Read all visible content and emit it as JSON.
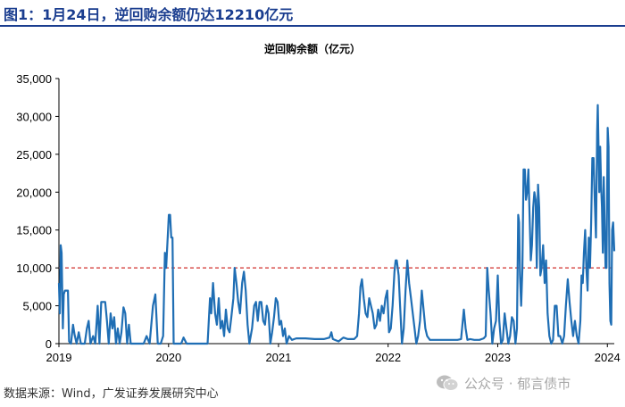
{
  "header": {
    "figure_title": "图1：1月24日，逆回购余额仍达12210亿元"
  },
  "footer": {
    "source": "数据来源：Wind，广发证券发展研究中心",
    "watermark": "公众号 · 郁言债市"
  },
  "colors": {
    "line": "#1f6eb4",
    "reference_line": "#d0312d",
    "title_blue": "#1a3d8f"
  },
  "chart_data": {
    "type": "line",
    "title": "逆回购余额（亿元）",
    "xlabel": "",
    "ylabel": "",
    "x_ticks": [
      "2019",
      "2020",
      "2021",
      "2022",
      "2023",
      "2024"
    ],
    "y_ticks": [
      "0",
      "5,000",
      "10,000",
      "15,000",
      "20,000",
      "25,000",
      "30,000",
      "35,000"
    ],
    "ylim": [
      0,
      35000
    ],
    "xlim": [
      "2019-01-01",
      "2024-01-24"
    ],
    "grid": false,
    "reference_line": {
      "y": 10000,
      "style": "dashed"
    },
    "series": [
      {
        "values": [
          [
            "2019-01-01",
            8000
          ],
          [
            "2019-01-04",
            4000
          ],
          [
            "2019-01-07",
            13000
          ],
          [
            "2019-01-10",
            12000
          ],
          [
            "2019-01-14",
            2000
          ],
          [
            "2019-01-17",
            6500
          ],
          [
            "2019-01-21",
            7000
          ],
          [
            "2019-01-24",
            7000
          ],
          [
            "2019-01-28",
            7000
          ],
          [
            "2019-01-31",
            7000
          ],
          [
            "2019-02-04",
            300
          ],
          [
            "2019-02-10",
            0
          ],
          [
            "2019-02-17",
            2500
          ],
          [
            "2019-02-22",
            1200
          ],
          [
            "2019-03-01",
            0
          ],
          [
            "2019-03-08",
            1500
          ],
          [
            "2019-03-15",
            0
          ],
          [
            "2019-03-28",
            0
          ],
          [
            "2019-04-04",
            2000
          ],
          [
            "2019-04-10",
            3000
          ],
          [
            "2019-04-16",
            0
          ],
          [
            "2019-04-25",
            1000
          ],
          [
            "2019-05-02",
            0
          ],
          [
            "2019-05-10",
            5000
          ],
          [
            "2019-05-16",
            0
          ],
          [
            "2019-05-22",
            5500
          ],
          [
            "2019-05-28",
            5500
          ],
          [
            "2019-06-04",
            5500
          ],
          [
            "2019-06-10",
            3000
          ],
          [
            "2019-06-16",
            0
          ],
          [
            "2019-06-22",
            4000
          ],
          [
            "2019-06-28",
            2000
          ],
          [
            "2019-07-04",
            3500
          ],
          [
            "2019-07-10",
            0
          ],
          [
            "2019-07-16",
            2000
          ],
          [
            "2019-07-22",
            0
          ],
          [
            "2019-07-28",
            1500
          ],
          [
            "2019-08-04",
            4800
          ],
          [
            "2019-08-10",
            4000
          ],
          [
            "2019-08-16",
            0
          ],
          [
            "2019-08-22",
            2500
          ],
          [
            "2019-08-28",
            0
          ],
          [
            "2019-09-04",
            0
          ],
          [
            "2019-09-12",
            0
          ],
          [
            "2019-09-20",
            0
          ],
          [
            "2019-10-01",
            0
          ],
          [
            "2019-10-10",
            0
          ],
          [
            "2019-10-20",
            1000
          ],
          [
            "2019-10-30",
            0
          ],
          [
            "2019-11-10",
            5000
          ],
          [
            "2019-11-18",
            6500
          ],
          [
            "2019-11-26",
            0
          ],
          [
            "2019-12-06",
            0
          ],
          [
            "2019-12-14",
            1000
          ],
          [
            "2019-12-20",
            12000
          ],
          [
            "2019-12-24",
            10000
          ],
          [
            "2020-01-02",
            17000
          ],
          [
            "2020-01-06",
            17000
          ],
          [
            "2020-01-10",
            14000
          ],
          [
            "2020-01-14",
            14000
          ],
          [
            "2020-01-18",
            0
          ],
          [
            "2020-01-25",
            0
          ],
          [
            "2020-02-05",
            0
          ],
          [
            "2020-02-12",
            0
          ],
          [
            "2020-02-20",
            800
          ],
          [
            "2020-03-01",
            0
          ],
          [
            "2020-03-15",
            0
          ],
          [
            "2020-04-01",
            0
          ],
          [
            "2020-04-20",
            0
          ],
          [
            "2020-05-10",
            0
          ],
          [
            "2020-05-18",
            6000
          ],
          [
            "2020-05-22",
            4000
          ],
          [
            "2020-05-28",
            8000
          ],
          [
            "2020-06-04",
            4000
          ],
          [
            "2020-06-10",
            2500
          ],
          [
            "2020-06-16",
            6000
          ],
          [
            "2020-06-22",
            2000
          ],
          [
            "2020-06-28",
            3000
          ],
          [
            "2020-07-04",
            1000
          ],
          [
            "2020-07-10",
            4500
          ],
          [
            "2020-07-16",
            2000
          ],
          [
            "2020-07-22",
            1500
          ],
          [
            "2020-07-28",
            3500
          ],
          [
            "2020-08-04",
            6000
          ],
          [
            "2020-08-08",
            10000
          ],
          [
            "2020-08-14",
            8000
          ],
          [
            "2020-08-20",
            5500
          ],
          [
            "2020-08-26",
            4000
          ],
          [
            "2020-09-02",
            8000
          ],
          [
            "2020-09-08",
            9500
          ],
          [
            "2020-09-14",
            7000
          ],
          [
            "2020-09-20",
            2500
          ],
          [
            "2020-09-26",
            0
          ],
          [
            "2020-10-05",
            2000
          ],
          [
            "2020-10-12",
            5000
          ],
          [
            "2020-10-18",
            5500
          ],
          [
            "2020-10-24",
            3000
          ],
          [
            "2020-10-30",
            5500
          ],
          [
            "2020-11-05",
            5500
          ],
          [
            "2020-11-11",
            3000
          ],
          [
            "2020-11-17",
            2500
          ],
          [
            "2020-11-23",
            5000
          ],
          [
            "2020-11-29",
            4000
          ],
          [
            "2020-12-05",
            0
          ],
          [
            "2020-12-11",
            1500
          ],
          [
            "2020-12-17",
            3500
          ],
          [
            "2020-12-23",
            6000
          ],
          [
            "2020-12-29",
            5500
          ],
          [
            "2021-01-04",
            2500
          ],
          [
            "2021-01-10",
            3000
          ],
          [
            "2021-01-16",
            1000
          ],
          [
            "2021-01-22",
            2000
          ],
          [
            "2021-01-28",
            0
          ],
          [
            "2021-02-05",
            1000
          ],
          [
            "2021-02-15",
            500
          ],
          [
            "2021-03-01",
            700
          ],
          [
            "2021-04-01",
            700
          ],
          [
            "2021-05-01",
            600
          ],
          [
            "2021-06-01",
            600
          ],
          [
            "2021-06-20",
            800
          ],
          [
            "2021-06-26",
            1500
          ],
          [
            "2021-07-01",
            600
          ],
          [
            "2021-07-20",
            300
          ],
          [
            "2021-08-05",
            800
          ],
          [
            "2021-08-20",
            600
          ],
          [
            "2021-09-10",
            600
          ],
          [
            "2021-09-20",
            1000
          ],
          [
            "2021-09-26",
            4000
          ],
          [
            "2021-10-01",
            7500
          ],
          [
            "2021-10-06",
            8500
          ],
          [
            "2021-10-12",
            6000
          ],
          [
            "2021-10-18",
            4000
          ],
          [
            "2021-10-24",
            3500
          ],
          [
            "2021-10-30",
            6000
          ],
          [
            "2021-11-05",
            5000
          ],
          [
            "2021-11-11",
            4000
          ],
          [
            "2021-11-17",
            2000
          ],
          [
            "2021-11-23",
            2500
          ],
          [
            "2021-11-29",
            4500
          ],
          [
            "2021-12-05",
            3000
          ],
          [
            "2021-12-11",
            5000
          ],
          [
            "2021-12-17",
            4000
          ],
          [
            "2021-12-23",
            6000
          ],
          [
            "2021-12-29",
            7000
          ],
          [
            "2022-01-04",
            1500
          ],
          [
            "2022-01-10",
            2000
          ],
          [
            "2022-01-16",
            5000
          ],
          [
            "2022-01-22",
            9500
          ],
          [
            "2022-01-26",
            11000
          ],
          [
            "2022-01-30",
            11000
          ],
          [
            "2022-02-05",
            9000
          ],
          [
            "2022-02-10",
            5000
          ],
          [
            "2022-02-16",
            0
          ],
          [
            "2022-02-22",
            2000
          ],
          [
            "2022-02-28",
            7000
          ],
          [
            "2022-03-06",
            11000
          ],
          [
            "2022-03-12",
            8000
          ],
          [
            "2022-03-18",
            6000
          ],
          [
            "2022-03-24",
            4000
          ],
          [
            "2022-03-30",
            2000
          ],
          [
            "2022-04-05",
            0
          ],
          [
            "2022-04-11",
            1000
          ],
          [
            "2022-04-17",
            3000
          ],
          [
            "2022-04-23",
            7000
          ],
          [
            "2022-04-29",
            4500
          ],
          [
            "2022-05-05",
            2000
          ],
          [
            "2022-05-11",
            1000
          ],
          [
            "2022-05-20",
            500
          ],
          [
            "2022-06-01",
            500
          ],
          [
            "2022-06-20",
            500
          ],
          [
            "2022-07-01",
            500
          ],
          [
            "2022-07-15",
            500
          ],
          [
            "2022-08-01",
            500
          ],
          [
            "2022-08-20",
            500
          ],
          [
            "2022-09-01",
            600
          ],
          [
            "2022-09-10",
            4500
          ],
          [
            "2022-09-16",
            2000
          ],
          [
            "2022-09-22",
            500
          ],
          [
            "2022-10-01",
            600
          ],
          [
            "2022-10-15",
            500
          ],
          [
            "2022-11-01",
            500
          ],
          [
            "2022-11-15",
            700
          ],
          [
            "2022-11-22",
            1000
          ],
          [
            "2022-11-27",
            10000
          ],
          [
            "2022-12-02",
            7000
          ],
          [
            "2022-12-08",
            4000
          ],
          [
            "2022-12-14",
            0
          ],
          [
            "2022-12-20",
            2000
          ],
          [
            "2022-12-26",
            3000
          ],
          [
            "2023-01-01",
            9000
          ],
          [
            "2023-01-06",
            3000
          ],
          [
            "2023-01-12",
            0
          ],
          [
            "2023-01-18",
            500
          ],
          [
            "2023-01-24",
            4000
          ],
          [
            "2023-01-30",
            2000
          ],
          [
            "2023-02-05",
            0
          ],
          [
            "2023-02-11",
            1000
          ],
          [
            "2023-02-17",
            3500
          ],
          [
            "2023-02-23",
            3000
          ],
          [
            "2023-03-01",
            0
          ],
          [
            "2023-03-06",
            2000
          ],
          [
            "2023-03-10",
            17000
          ],
          [
            "2023-03-13",
            16000
          ],
          [
            "2023-03-16",
            9000
          ],
          [
            "2023-03-20",
            5000
          ],
          [
            "2023-03-24",
            10000
          ],
          [
            "2023-03-28",
            23000
          ],
          [
            "2023-04-01",
            23000
          ],
          [
            "2023-04-05",
            19000
          ],
          [
            "2023-04-09",
            20000
          ],
          [
            "2023-04-13",
            23000
          ],
          [
            "2023-04-17",
            17000
          ],
          [
            "2023-04-21",
            11000
          ],
          [
            "2023-04-25",
            13000
          ],
          [
            "2023-04-29",
            18000
          ],
          [
            "2023-05-03",
            20000
          ],
          [
            "2023-05-07",
            19000
          ],
          [
            "2023-05-11",
            10000
          ],
          [
            "2023-05-15",
            21000
          ],
          [
            "2023-05-19",
            18000
          ],
          [
            "2023-05-23",
            9000
          ],
          [
            "2023-05-27",
            10000
          ],
          [
            "2023-06-01",
            13000
          ],
          [
            "2023-06-06",
            8000
          ],
          [
            "2023-06-11",
            11000
          ],
          [
            "2023-06-16",
            4000
          ],
          [
            "2023-06-22",
            1000
          ],
          [
            "2023-06-28",
            0
          ],
          [
            "2023-07-04",
            500
          ],
          [
            "2023-07-10",
            5000
          ],
          [
            "2023-07-16",
            5000
          ],
          [
            "2023-07-22",
            1000
          ],
          [
            "2023-07-28",
            1000
          ],
          [
            "2023-08-04",
            0
          ],
          [
            "2023-08-10",
            1000
          ],
          [
            "2023-08-16",
            5000
          ],
          [
            "2023-08-22",
            8500
          ],
          [
            "2023-08-28",
            5500
          ],
          [
            "2023-09-03",
            3000
          ],
          [
            "2023-09-09",
            1000
          ],
          [
            "2023-09-15",
            3000
          ],
          [
            "2023-09-21",
            1000
          ],
          [
            "2023-09-27",
            0
          ],
          [
            "2023-10-03",
            3000
          ],
          [
            "2023-10-07",
            9000
          ],
          [
            "2023-10-11",
            8000
          ],
          [
            "2023-10-15",
            12000
          ],
          [
            "2023-10-19",
            15000
          ],
          [
            "2023-10-23",
            10000
          ],
          [
            "2023-10-27",
            7000
          ],
          [
            "2023-10-31",
            14000
          ],
          [
            "2023-11-04",
            10000
          ],
          [
            "2023-11-08",
            16000
          ],
          [
            "2023-11-12",
            24500
          ],
          [
            "2023-11-16",
            24500
          ],
          [
            "2023-11-20",
            19000
          ],
          [
            "2023-11-24",
            14000
          ],
          [
            "2023-11-28",
            28000
          ],
          [
            "2023-11-30",
            31500
          ],
          [
            "2023-12-02",
            27000
          ],
          [
            "2023-12-05",
            20000
          ],
          [
            "2023-12-08",
            26000
          ],
          [
            "2023-12-11",
            21000
          ],
          [
            "2023-12-14",
            18000
          ],
          [
            "2023-12-17",
            12000
          ],
          [
            "2023-12-20",
            22000
          ],
          [
            "2023-12-23",
            16000
          ],
          [
            "2023-12-26",
            10000
          ],
          [
            "2023-12-29",
            10000
          ],
          [
            "2024-01-02",
            28500
          ],
          [
            "2024-01-05",
            26000
          ],
          [
            "2024-01-08",
            8000
          ],
          [
            "2024-01-11",
            3000
          ],
          [
            "2024-01-14",
            2500
          ],
          [
            "2024-01-17",
            15000
          ],
          [
            "2024-01-20",
            16000
          ],
          [
            "2024-01-24",
            12210
          ]
        ]
      }
    ]
  }
}
